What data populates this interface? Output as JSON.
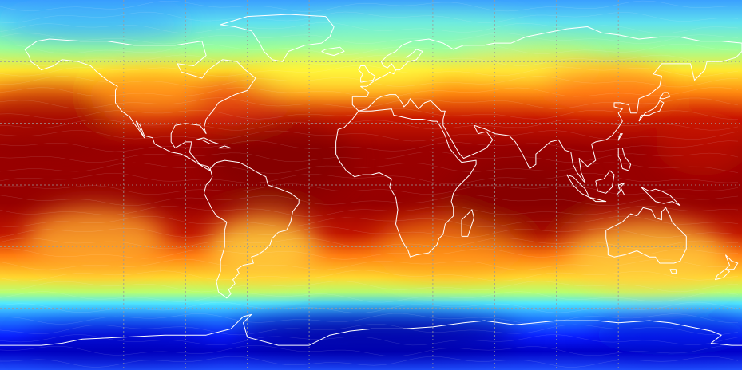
{
  "map": {
    "projection": "equirectangular",
    "colormap": [
      "#00008b",
      "#0000ff",
      "#1e6bff",
      "#35c8ff",
      "#7cffd9",
      "#bfff6a",
      "#ffff33",
      "#ffb020",
      "#ff5a00",
      "#d01000",
      "#8b0000"
    ],
    "coastline_color": "#ffffff",
    "graticule_color": "#9a9a9a",
    "graticule": true,
    "graticule_spacing_degrees": 30
  }
}
